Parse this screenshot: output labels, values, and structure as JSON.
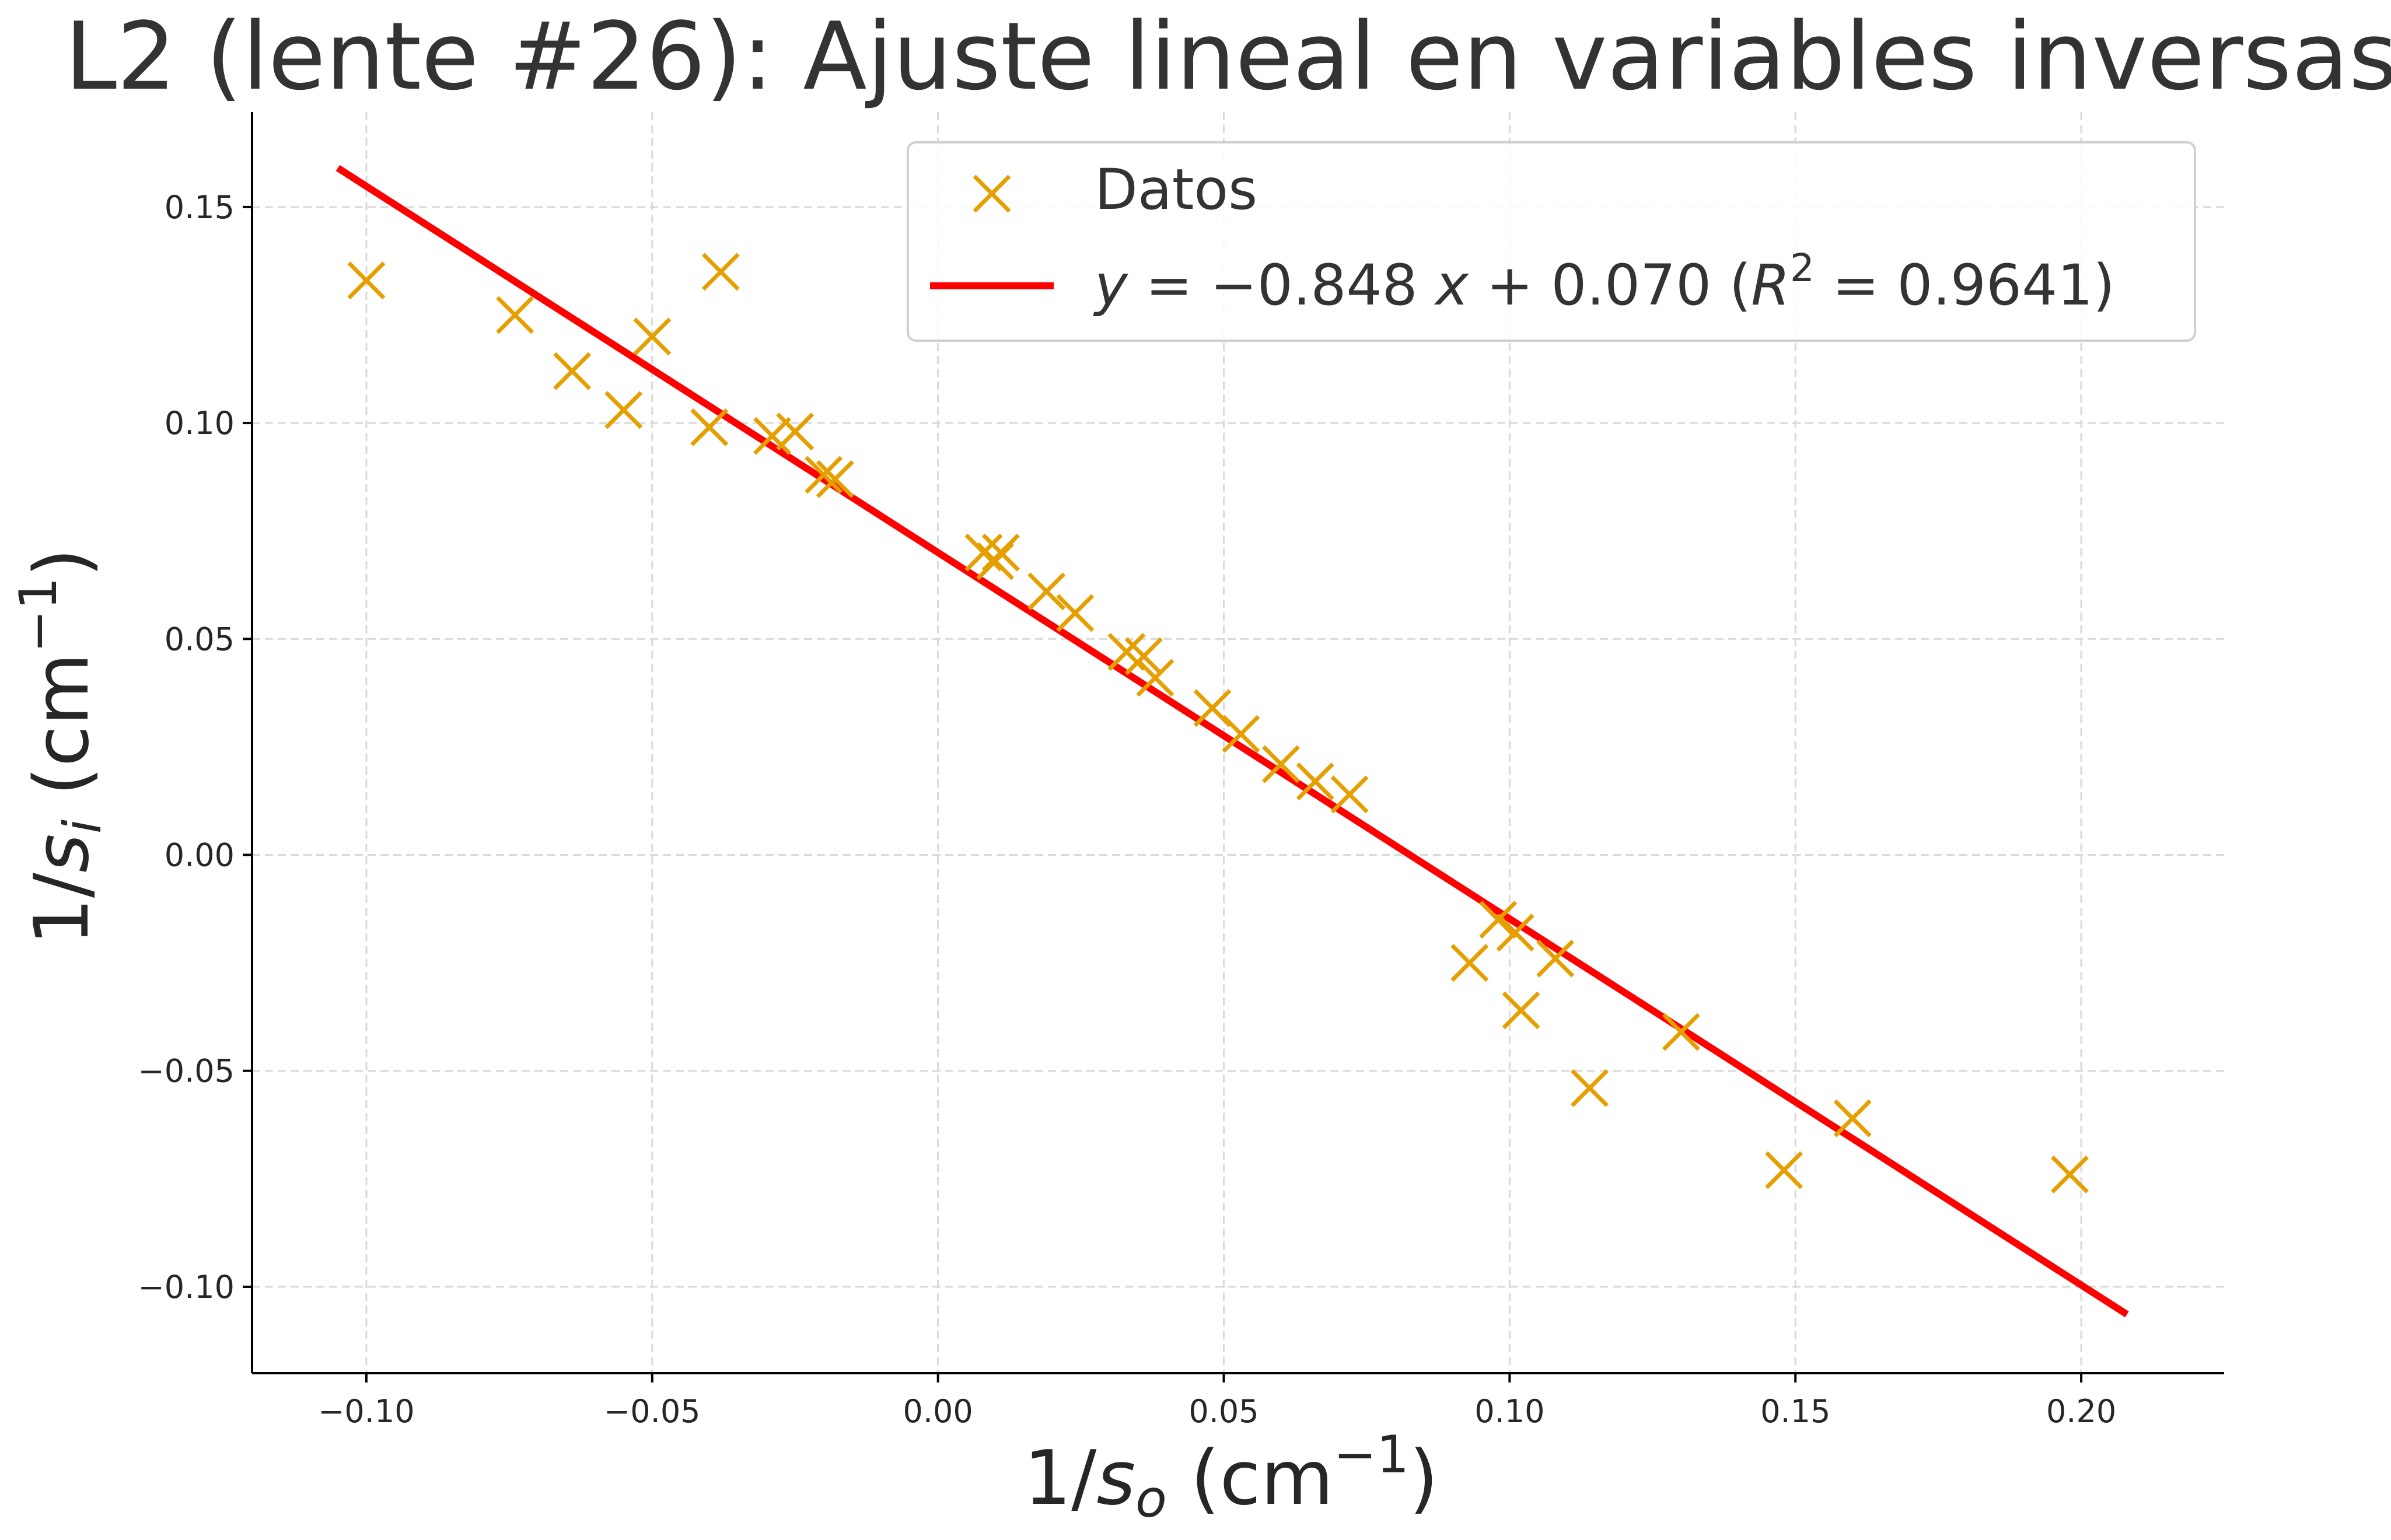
{
  "chart_data": {
    "type": "scatter",
    "title": "L2 (lente #26): Ajuste lineal en variables inversas",
    "xlabel": {
      "prefix": "1/",
      "var": "s",
      "sub": "o",
      "unit_pre": " (cm",
      "sup": "−1",
      "unit_post": ")"
    },
    "ylabel": {
      "prefix": "1/",
      "var": "s",
      "sub": "i",
      "unit_pre": " (cm",
      "sup": "−1",
      "unit_post": ")"
    },
    "xlim": [
      -0.12,
      0.225
    ],
    "ylim": [
      -0.12,
      0.172
    ],
    "xticks": [
      -0.1,
      -0.05,
      0.0,
      0.05,
      0.1,
      0.15,
      0.2
    ],
    "xtick_labels": [
      "−0.10",
      "−0.05",
      "0.00",
      "0.05",
      "0.10",
      "0.15",
      "0.20"
    ],
    "yticks": [
      -0.1,
      -0.05,
      0.0,
      0.05,
      0.1,
      0.15
    ],
    "ytick_labels": [
      "−0.10",
      "−0.05",
      "0.00",
      "0.05",
      "0.10",
      "0.15"
    ],
    "grid": true,
    "legend_position": "top-right",
    "series": [
      {
        "name": "Datos",
        "kind": "scatter",
        "marker": "x",
        "color": "#E69F00",
        "points": [
          [
            -0.1,
            0.133
          ],
          [
            -0.074,
            0.125
          ],
          [
            -0.064,
            0.112
          ],
          [
            -0.055,
            0.103
          ],
          [
            -0.05,
            0.12
          ],
          [
            -0.038,
            0.135
          ],
          [
            -0.04,
            0.099
          ],
          [
            -0.029,
            0.097
          ],
          [
            -0.025,
            0.098
          ],
          [
            -0.02,
            0.088
          ],
          [
            -0.018,
            0.087
          ],
          [
            0.008,
            0.07
          ],
          [
            0.01,
            0.068
          ],
          [
            0.011,
            0.07
          ],
          [
            0.019,
            0.061
          ],
          [
            0.024,
            0.056
          ],
          [
            0.033,
            0.047
          ],
          [
            0.036,
            0.046
          ],
          [
            0.038,
            0.041
          ],
          [
            0.048,
            0.034
          ],
          [
            0.053,
            0.028
          ],
          [
            0.06,
            0.021
          ],
          [
            0.066,
            0.017
          ],
          [
            0.072,
            0.014
          ],
          [
            0.093,
            -0.025
          ],
          [
            0.098,
            -0.015
          ],
          [
            0.101,
            -0.018
          ],
          [
            0.102,
            -0.036
          ],
          [
            0.108,
            -0.024
          ],
          [
            0.114,
            -0.054
          ],
          [
            0.13,
            -0.041
          ],
          [
            0.148,
            -0.073
          ],
          [
            0.16,
            -0.061
          ],
          [
            0.198,
            -0.074
          ]
        ]
      },
      {
        "kind": "line",
        "color": "#FF0000",
        "slope": -0.848,
        "intercept": 0.07,
        "x_range": [
          -0.105,
          0.208
        ]
      }
    ],
    "legend": [
      {
        "label": "Datos",
        "kind": "marker",
        "color": "#E69F00"
      },
      {
        "label_parts": {
          "y": "y",
          "eq": " = −0.848 ",
          "x": "x",
          "rest": " + 0.070   (",
          "R": "R",
          "sup": "2",
          "tail": " = 0.9641)"
        },
        "kind": "line",
        "color": "#FF0000"
      }
    ]
  }
}
